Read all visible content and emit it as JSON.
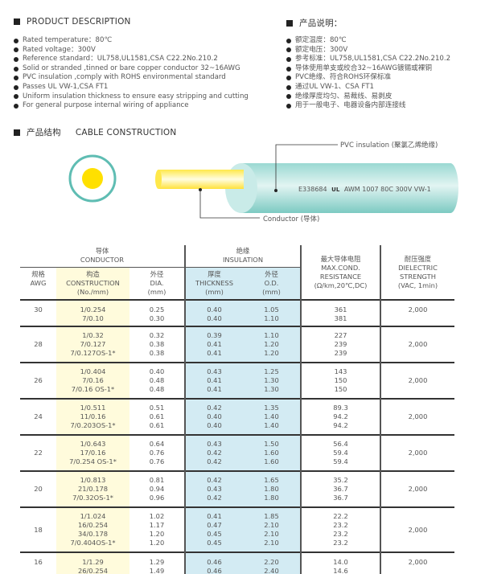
{
  "description_en": {
    "title": "PRODUCT DESCRIPTION",
    "items": [
      "Rated temperature：80℃",
      "Rated voltage：300V",
      "Reference standard：UL758,UL1581,CSA C22.2No.210.2",
      "Solid or stranded ,tinned or bare copper conductor 32~16AWG",
      "PVC insulation ,comply with ROHS environmental standard",
      "Passes UL VW-1,CSA FT1",
      "Uniform insulation thickness to ensure easy stripping and cutting",
      "For general purpose internal wiring of appliance"
    ]
  },
  "description_cn": {
    "title": "产品说明：",
    "items": [
      "额定温度：80℃",
      "额定电压：300V",
      "参考标准：UL758,UL1581,CSA C22.2No.210.2",
      "导体使用单支或绞合32~16AWG镀锡或裸铜",
      "PVC绝缘、符合ROHS环保标准",
      "通过UL VW-1、CSA FT1",
      "绝缘厚度均匀、易裁线、易剥皮",
      "用于一般电子、电器设备内部连接线"
    ]
  },
  "construction": {
    "title_cn": "产品结构",
    "title_en": "CABLE CONSTRUCTION",
    "insulation_label": "PVC insulation (聚氯乙烯绝缘)",
    "conductor_label": "Conductor (导体)",
    "print_left": "E338684",
    "print_mark": "UL",
    "print_right": "AWM 1007 80C 300V VW-1",
    "colors": {
      "insulation": "#8fd3cc",
      "conductor": "#ffe200"
    }
  },
  "table": {
    "group_conductor": [
      "导体",
      "CONDUCTOR"
    ],
    "group_insulation": [
      "绝缘",
      "INSULATION"
    ],
    "h_awg": [
      "规格",
      "AWG"
    ],
    "h_construction": [
      "构造",
      "CONSTRUCTION",
      "(No./mm)"
    ],
    "h_dia": [
      "外径",
      "DIA.",
      "(mm)"
    ],
    "h_thickness": [
      "厚度",
      "THICKNESS",
      "(mm)"
    ],
    "h_od": [
      "外径",
      "O.D.",
      "(mm)"
    ],
    "h_resistance": [
      "最大导体电阻",
      "MAX.COND.",
      "RESISTANCE",
      "(Ω/km,20℃,DC)"
    ],
    "h_dielectric": [
      "耐压强度",
      "DIELECTRIC",
      "STRENGTH",
      "(VAC, 1min)"
    ],
    "rows": [
      {
        "awg": "30",
        "construction": [
          "1/0.254",
          "7/0.10"
        ],
        "dia": [
          "0.25",
          "0.30"
        ],
        "thickness": [
          "0.40",
          "0.40"
        ],
        "od": [
          "1.05",
          "1.10"
        ],
        "resistance": [
          "361",
          "381"
        ],
        "dielectric": "2,000"
      },
      {
        "awg": "28",
        "construction": [
          "1/0.32",
          "7/0.127",
          "7/0.127OS-1*"
        ],
        "dia": [
          "0.32",
          "0.38",
          "0.38"
        ],
        "thickness": [
          "0.39",
          "0.41",
          "0.41"
        ],
        "od": [
          "1.10",
          "1.20",
          "1.20"
        ],
        "resistance": [
          "227",
          "239",
          "239"
        ],
        "dielectric": "2,000"
      },
      {
        "awg": "26",
        "construction": [
          "1/0.404",
          "7/0.16",
          "7/0.16 OS-1*"
        ],
        "dia": [
          "0.40",
          "0.48",
          "0.48"
        ],
        "thickness": [
          "0.43",
          "0.41",
          "0.41"
        ],
        "od": [
          "1.25",
          "1.30",
          "1.30"
        ],
        "resistance": [
          "143",
          "150",
          "150"
        ],
        "dielectric": "2,000"
      },
      {
        "awg": "24",
        "construction": [
          "1/0.511",
          "11/0.16",
          "7/0.203OS-1*"
        ],
        "dia": [
          "0.51",
          "0.61",
          "0.61"
        ],
        "thickness": [
          "0.42",
          "0.40",
          "0.40"
        ],
        "od": [
          "1.35",
          "1.40",
          "1.40"
        ],
        "resistance": [
          "89.3",
          "94.2",
          "94.2"
        ],
        "dielectric": "2,000"
      },
      {
        "awg": "22",
        "construction": [
          "1/0.643",
          "17/0.16",
          "7/0.254 OS-1*"
        ],
        "dia": [
          "0.64",
          "0.76",
          "0.76"
        ],
        "thickness": [
          "0.43",
          "0.42",
          "0.42"
        ],
        "od": [
          "1.50",
          "1.60",
          "1.60"
        ],
        "resistance": [
          "56.4",
          "59.4",
          "59.4"
        ],
        "dielectric": "2,000"
      },
      {
        "awg": "20",
        "construction": [
          "1/0.813",
          "21/0.178",
          "7/0.32OS-1*"
        ],
        "dia": [
          "0.81",
          "0.94",
          "0.96"
        ],
        "thickness": [
          "0.42",
          "0.43",
          "0.42"
        ],
        "od": [
          "1.65",
          "1.80",
          "1.80"
        ],
        "resistance": [
          "35.2",
          "36.7",
          "36.7"
        ],
        "dielectric": "2,000"
      },
      {
        "awg": "18",
        "construction": [
          "1/1.024",
          "16/0.254",
          "34/0.178",
          "7/0.404OS-1*"
        ],
        "dia": [
          "1.02",
          "1.17",
          "1.20",
          "1.20"
        ],
        "thickness": [
          "0.41",
          "0.47",
          "0.45",
          "0.45"
        ],
        "od": [
          "1.85",
          "2.10",
          "2.10",
          "2.10"
        ],
        "resistance": [
          "22.2",
          "23.2",
          "23.2",
          "23.2"
        ],
        "dielectric": "2,000"
      },
      {
        "awg": "16",
        "construction": [
          "1/1.29",
          "26/0.254"
        ],
        "dia": [
          "1.29",
          "1.49"
        ],
        "thickness": [
          "0.46",
          "0.46"
        ],
        "od": [
          "2.20",
          "2.40"
        ],
        "resistance": [
          "14.0",
          "14.6"
        ],
        "dielectric": "2,000"
      }
    ]
  }
}
